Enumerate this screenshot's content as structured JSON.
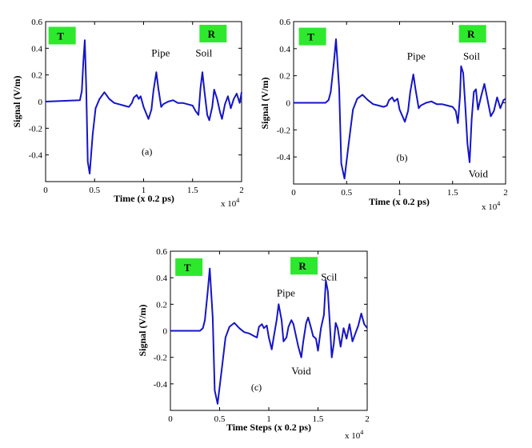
{
  "colors": {
    "line": "#1515c8",
    "marker_box": "#2ee82e",
    "axis": "#000000"
  },
  "axis_labels": {
    "ylabel": "Signal (V/m)",
    "xlabel_ab": "Time (x 0.2 ps)",
    "xlabel_c": "Time Steps (x 0.2 ps)",
    "xscale": "x 10",
    "xscale_exp": "4"
  },
  "chart_data": [
    {
      "type": "line",
      "panel": "(a)",
      "xlim": [
        0,
        2
      ],
      "ylim": [
        -0.6,
        0.6
      ],
      "xticks": [
        "0",
        "0.5",
        "1",
        "1.5",
        "2"
      ],
      "yticks": [
        "0.6",
        "0.4",
        "0.2",
        "0",
        "-0.2",
        "-0.4"
      ],
      "markers": [
        {
          "text": "T",
          "x": 0.03,
          "y": 0.495
        },
        {
          "text": "R",
          "x": 1.57,
          "y": 0.51
        }
      ],
      "annotations": [
        {
          "text": "Pipe",
          "x": 1.08,
          "y": 0.34
        },
        {
          "text": "Soil",
          "x": 1.53,
          "y": 0.34
        },
        {
          "text": "(a)",
          "x": 0.98,
          "y": -0.4
        }
      ],
      "series": [
        {
          "x": [
            0,
            0.35,
            0.37,
            0.385,
            0.4,
            0.415,
            0.43,
            0.45,
            0.48,
            0.51,
            0.55,
            0.6,
            0.65,
            0.7,
            0.75,
            0.8,
            0.85,
            0.88,
            0.9,
            0.93,
            0.95,
            0.97,
            1.0,
            1.05,
            1.08,
            1.1,
            1.13,
            1.15,
            1.18,
            1.2,
            1.25,
            1.3,
            1.35,
            1.4,
            1.45,
            1.5,
            1.53,
            1.56,
            1.58,
            1.6,
            1.62,
            1.65,
            1.67,
            1.7,
            1.72,
            1.75,
            1.78,
            1.8,
            1.83,
            1.86,
            1.89,
            1.92,
            1.95,
            1.98,
            2.0
          ],
          "y": [
            0,
            0.01,
            0.08,
            0.3,
            0.46,
            0.1,
            -0.45,
            -0.54,
            -0.25,
            -0.05,
            0.02,
            0.07,
            0.02,
            -0.01,
            -0.02,
            -0.03,
            -0.04,
            -0.01,
            0.03,
            0.05,
            0.02,
            0.04,
            -0.04,
            -0.13,
            -0.06,
            0.08,
            0.22,
            0.1,
            -0.04,
            -0.02,
            0,
            0.01,
            -0.01,
            -0.01,
            -0.02,
            -0.03,
            -0.07,
            -0.1,
            0.1,
            0.22,
            0.08,
            -0.1,
            -0.14,
            -0.04,
            0.09,
            0.02,
            -0.08,
            -0.13,
            -0.02,
            0.04,
            -0.05,
            0.02,
            0.06,
            -0.01,
            0.07
          ]
        }
      ]
    },
    {
      "type": "line",
      "panel": "(b)",
      "xlim": [
        0,
        2
      ],
      "ylim": [
        -0.6,
        0.6
      ],
      "xticks": [
        "0",
        "0.5",
        "1",
        "1.5",
        "2"
      ],
      "yticks": [
        "0.6",
        "0.4",
        "0.2",
        "0",
        "-0.2",
        "-0.4"
      ],
      "markers": [
        {
          "text": "T",
          "x": 0.05,
          "y": 0.49
        },
        {
          "text": "R",
          "x": 1.56,
          "y": 0.51
        }
      ],
      "annotations": [
        {
          "text": "Pipe",
          "x": 1.07,
          "y": 0.32
        },
        {
          "text": "Soil",
          "x": 1.6,
          "y": 0.32
        },
        {
          "text": "(b)",
          "x": 0.97,
          "y": -0.43
        },
        {
          "text": "Void",
          "x": 1.65,
          "y": -0.55
        }
      ],
      "series": [
        {
          "x": [
            0,
            0.3,
            0.33,
            0.35,
            0.38,
            0.4,
            0.43,
            0.45,
            0.48,
            0.52,
            0.56,
            0.6,
            0.65,
            0.7,
            0.75,
            0.8,
            0.85,
            0.88,
            0.9,
            0.93,
            0.95,
            0.98,
            1.0,
            1.05,
            1.08,
            1.1,
            1.13,
            1.15,
            1.18,
            1.2,
            1.25,
            1.3,
            1.35,
            1.4,
            1.45,
            1.5,
            1.53,
            1.55,
            1.57,
            1.58,
            1.6,
            1.62,
            1.64,
            1.66,
            1.68,
            1.7,
            1.72,
            1.74,
            1.77,
            1.8,
            1.83,
            1.86,
            1.89,
            1.92,
            1.95,
            1.98,
            2.0
          ],
          "y": [
            0,
            0,
            0.02,
            0.08,
            0.3,
            0.47,
            0.1,
            -0.45,
            -0.56,
            -0.3,
            -0.05,
            0.03,
            0.06,
            0.02,
            -0.01,
            -0.02,
            -0.03,
            -0.02,
            0.02,
            0.04,
            0.01,
            0.03,
            -0.05,
            -0.14,
            -0.06,
            0.08,
            0.21,
            0.1,
            -0.04,
            -0.02,
            0,
            0.01,
            -0.01,
            -0.01,
            -0.02,
            -0.03,
            -0.06,
            -0.15,
            0.05,
            0.27,
            0.22,
            -0.02,
            -0.3,
            -0.44,
            -0.12,
            0.08,
            0.1,
            -0.05,
            0.05,
            0.14,
            0.02,
            -0.1,
            -0.06,
            0.04,
            -0.04,
            0.02,
            0.03
          ]
        }
      ]
    },
    {
      "type": "line",
      "panel": "(c)",
      "xlim": [
        0,
        2
      ],
      "ylim": [
        -0.6,
        0.6
      ],
      "xticks": [
        "0",
        "0.5",
        "1",
        "1.5",
        "2"
      ],
      "yticks": [
        "0.6",
        "0.4",
        "0.2",
        "0",
        "-0.2",
        "-0.4"
      ],
      "markers": [
        {
          "text": "T",
          "x": 0.05,
          "y": 0.48
        },
        {
          "text": "R",
          "x": 1.22,
          "y": 0.49
        }
      ],
      "annotations": [
        {
          "text": "Pipe",
          "x": 1.08,
          "y": 0.26
        },
        {
          "text": "Scil",
          "x": 1.53,
          "y": 0.38
        },
        {
          "text": "Void",
          "x": 1.23,
          "y": -0.33
        },
        {
          "text": "(c)",
          "x": 0.82,
          "y": -0.45
        }
      ],
      "series": [
        {
          "x": [
            0,
            0.3,
            0.33,
            0.35,
            0.38,
            0.4,
            0.43,
            0.45,
            0.48,
            0.52,
            0.56,
            0.6,
            0.65,
            0.7,
            0.75,
            0.8,
            0.85,
            0.88,
            0.9,
            0.93,
            0.95,
            0.98,
            1.0,
            1.03,
            1.05,
            1.08,
            1.1,
            1.13,
            1.15,
            1.18,
            1.2,
            1.23,
            1.25,
            1.28,
            1.3,
            1.33,
            1.35,
            1.38,
            1.4,
            1.43,
            1.45,
            1.48,
            1.5,
            1.53,
            1.56,
            1.58,
            1.6,
            1.62,
            1.64,
            1.66,
            1.68,
            1.7,
            1.73,
            1.76,
            1.79,
            1.82,
            1.85,
            1.88,
            1.91,
            1.94,
            1.97,
            2.0
          ],
          "y": [
            0,
            0,
            0.02,
            0.08,
            0.3,
            0.47,
            0.1,
            -0.45,
            -0.55,
            -0.3,
            -0.05,
            0.03,
            0.06,
            0.02,
            -0.01,
            -0.02,
            -0.04,
            -0.05,
            0.03,
            0.05,
            0.02,
            0.04,
            -0.05,
            -0.14,
            -0.05,
            0.08,
            0.2,
            0.08,
            -0.08,
            -0.05,
            0.03,
            0.08,
            0.05,
            -0.05,
            -0.12,
            -0.2,
            -0.08,
            0.06,
            0.1,
            0.02,
            -0.04,
            -0.06,
            -0.15,
            0.02,
            0.12,
            0.38,
            0.3,
            0.05,
            -0.2,
            -0.1,
            0.06,
            0.02,
            -0.12,
            0.02,
            -0.06,
            0.05,
            -0.08,
            -0.02,
            0.04,
            0.13,
            0.05,
            0.02
          ]
        }
      ]
    }
  ]
}
